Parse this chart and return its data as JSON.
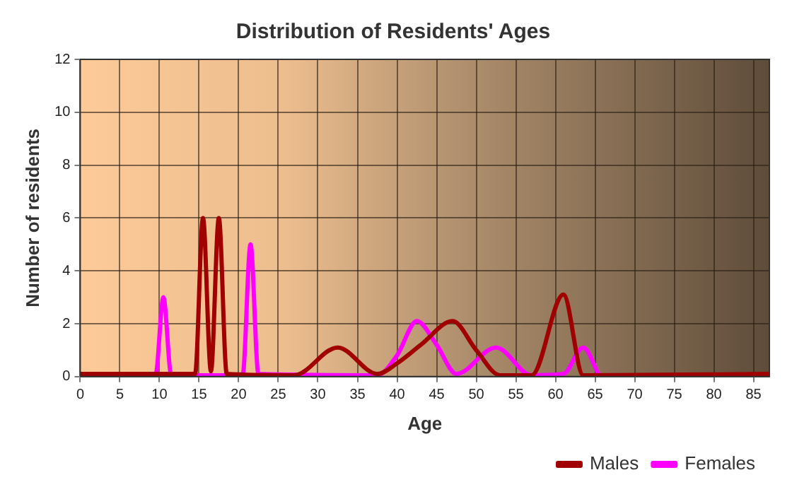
{
  "chart_data": {
    "type": "line",
    "title": "Distribution of Residents' Ages",
    "xlabel": "Age",
    "ylabel": "Number of residents",
    "xlim": [
      0,
      87
    ],
    "xticks": [
      0,
      5,
      10,
      15,
      20,
      25,
      30,
      35,
      40,
      45,
      50,
      55,
      60,
      65,
      70,
      75,
      80,
      85
    ],
    "ylim": [
      0,
      12
    ],
    "yticks": [
      0,
      2,
      4,
      6,
      8,
      10,
      12
    ],
    "grid": true,
    "legend": "bottom",
    "marker": "none",
    "series": [
      {
        "name": "Males",
        "color": "#a00000",
        "x": [
          0,
          14,
          14.5,
          15.5,
          16.5,
          17.5,
          18.5,
          27,
          32.5,
          37.5,
          40,
          43,
          47,
          50,
          53,
          57,
          61,
          63.5,
          87
        ],
        "values": [
          0.1,
          0.1,
          0.1,
          6,
          0.2,
          6,
          0.1,
          0.05,
          1.1,
          0.1,
          0.5,
          1.2,
          2.1,
          1,
          0.05,
          0.05,
          3.1,
          0.05,
          0.1
        ]
      },
      {
        "name": "Females",
        "color": "#ff00ff",
        "x": [
          0,
          9.5,
          10.5,
          11.5,
          20.5,
          21.5,
          22.5,
          25,
          37.5,
          40,
          42.5,
          45,
          47.5,
          52.5,
          57,
          61,
          63.5,
          65.5
        ],
        "values": [
          0.05,
          0.05,
          3,
          0.05,
          0.05,
          5,
          0.1,
          null,
          0.05,
          0.8,
          2.1,
          1.2,
          0.1,
          1.1,
          0.05,
          0.1,
          1.1,
          0.05
        ]
      }
    ]
  }
}
